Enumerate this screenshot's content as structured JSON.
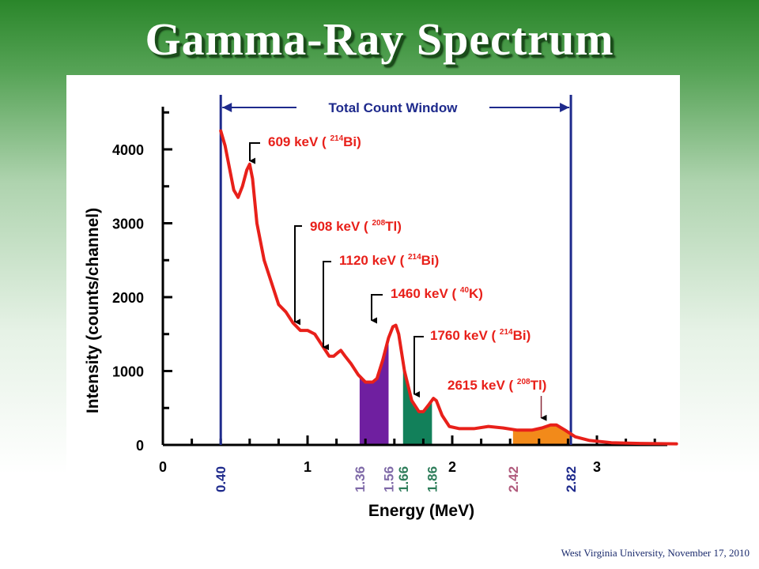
{
  "title": "Gamma-Ray Spectrum",
  "footer": "West Virginia University, November 17, 2010",
  "colors": {
    "spectrum": "#e8201a",
    "axis": "#000000",
    "window": "#1e2a8c",
    "purple": "#6f1fa0",
    "green": "#12805a",
    "orange": "#f28a1a",
    "annotation": "#e8201a",
    "label_purple": "#7f6aa8",
    "label_green": "#2e7d5a",
    "label_pink": "#b05a7c"
  },
  "chart_data": {
    "type": "line",
    "xlabel": "Energy (MeV)",
    "ylabel": "Intensity (counts/channel)",
    "xlim": [
      0,
      3.6
    ],
    "ylim": [
      0,
      4500
    ],
    "x_ticks": [
      {
        "label": "0",
        "value": 0
      },
      {
        "label": "1",
        "value": 1
      },
      {
        "label": "2",
        "value": 2
      },
      {
        "label": "3",
        "value": 3
      }
    ],
    "y_ticks": [
      {
        "label": "0",
        "value": 0
      },
      {
        "label": "1000",
        "value": 1000
      },
      {
        "label": "2000",
        "value": 2000
      },
      {
        "label": "3000",
        "value": 3000
      },
      {
        "label": "4000",
        "value": 4000
      }
    ],
    "series": [
      {
        "points": [
          [
            0.4,
            4250
          ],
          [
            0.43,
            4050
          ],
          [
            0.46,
            3750
          ],
          [
            0.49,
            3450
          ],
          [
            0.52,
            3350
          ],
          [
            0.55,
            3500
          ],
          [
            0.58,
            3720
          ],
          [
            0.6,
            3800
          ],
          [
            0.62,
            3600
          ],
          [
            0.65,
            3000
          ],
          [
            0.7,
            2500
          ],
          [
            0.75,
            2200
          ],
          [
            0.8,
            1900
          ],
          [
            0.85,
            1800
          ],
          [
            0.9,
            1650
          ],
          [
            0.95,
            1550
          ],
          [
            1.0,
            1550
          ],
          [
            1.05,
            1500
          ],
          [
            1.1,
            1350
          ],
          [
            1.15,
            1200
          ],
          [
            1.18,
            1200
          ],
          [
            1.21,
            1250
          ],
          [
            1.23,
            1280
          ],
          [
            1.26,
            1200
          ],
          [
            1.3,
            1100
          ],
          [
            1.35,
            950
          ],
          [
            1.4,
            850
          ],
          [
            1.45,
            850
          ],
          [
            1.48,
            900
          ],
          [
            1.52,
            1150
          ],
          [
            1.56,
            1450
          ],
          [
            1.59,
            1600
          ],
          [
            1.61,
            1620
          ],
          [
            1.63,
            1500
          ],
          [
            1.67,
            1000
          ],
          [
            1.72,
            600
          ],
          [
            1.77,
            450
          ],
          [
            1.8,
            450
          ],
          [
            1.84,
            550
          ],
          [
            1.87,
            630
          ],
          [
            1.89,
            600
          ],
          [
            1.93,
            400
          ],
          [
            1.98,
            250
          ],
          [
            2.05,
            220
          ],
          [
            2.15,
            220
          ],
          [
            2.25,
            250
          ],
          [
            2.35,
            230
          ],
          [
            2.45,
            200
          ],
          [
            2.55,
            200
          ],
          [
            2.62,
            230
          ],
          [
            2.68,
            270
          ],
          [
            2.72,
            270
          ],
          [
            2.78,
            200
          ],
          [
            2.85,
            110
          ],
          [
            2.95,
            60
          ],
          [
            3.1,
            30
          ],
          [
            3.3,
            20
          ],
          [
            3.55,
            15
          ]
        ]
      }
    ],
    "shaded_windows": [
      {
        "from": 1.36,
        "to": 1.56,
        "color": "#6f1fa0"
      },
      {
        "from": 1.66,
        "to": 1.86,
        "color": "#12805a"
      },
      {
        "from": 2.42,
        "to": 2.82,
        "color": "#f28a1a"
      }
    ],
    "window_lines": [
      {
        "value": 0.4,
        "label": "0.40"
      },
      {
        "value": 2.82,
        "label": "2.82"
      }
    ],
    "window_label": "Total Count Window",
    "energy_markers": [
      {
        "value": 1.36,
        "label": "1.36",
        "color": "#7f6aa8"
      },
      {
        "value": 1.56,
        "label": "1.56",
        "color": "#7f6aa8"
      },
      {
        "value": 1.66,
        "label": "1.66",
        "color": "#2e7d5a"
      },
      {
        "value": 1.86,
        "label": "1.86",
        "color": "#2e7d5a"
      },
      {
        "value": 2.42,
        "label": "2.42",
        "color": "#b05a7c"
      },
      {
        "value": 2.82,
        "label": "2.82",
        "color": "#1e2a8c"
      }
    ],
    "annotations": [
      {
        "text": "609 keV (",
        "iso": "214",
        "element": "Bi)",
        "x": 0.61,
        "y": 3780
      },
      {
        "text": "908 keV (",
        "iso": "208",
        "element": "Tl)",
        "x": 0.91,
        "y": 1600
      },
      {
        "text": "1120 keV (",
        "iso": "214",
        "element": "Bi)",
        "x": 1.12,
        "y": 1260
      },
      {
        "text": "1460 keV (",
        "iso": "40",
        "element": "K)",
        "x": 1.46,
        "y": 1620
      },
      {
        "text": "1760 keV (",
        "iso": "214",
        "element": "Bi)",
        "x": 1.76,
        "y": 620
      },
      {
        "text": "2615 keV (",
        "iso": "208",
        "element": "Tl)",
        "x": 2.615,
        "y": 280
      }
    ]
  }
}
